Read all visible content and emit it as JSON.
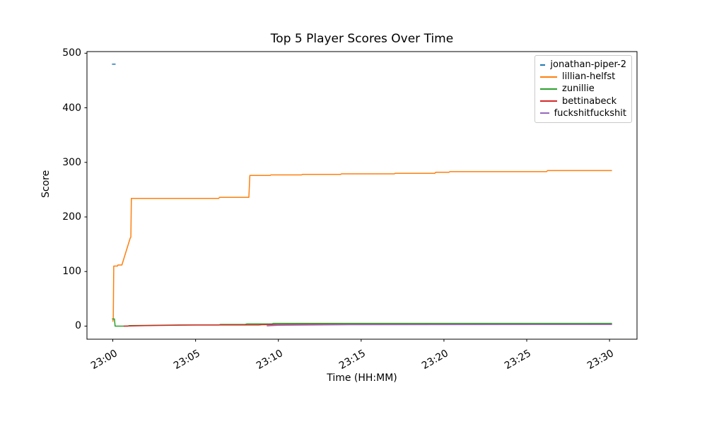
{
  "chart_data": {
    "type": "line",
    "title": "Top 5 Player Scores Over Time",
    "xlabel": "Time (HH:MM)",
    "ylabel": "Score",
    "x_axis_unit": "minutes after 23:00",
    "xlim": [
      -1.56,
      31.66
    ],
    "ylim": [
      -24,
      503
    ],
    "grid": false,
    "x_ticks": [
      {
        "value": 0,
        "label": "23:00"
      },
      {
        "value": 5,
        "label": "23:05"
      },
      {
        "value": 10,
        "label": "23:10"
      },
      {
        "value": 15,
        "label": "23:15"
      },
      {
        "value": 20,
        "label": "23:20"
      },
      {
        "value": 25,
        "label": "23:25"
      },
      {
        "value": 30,
        "label": "23:30"
      }
    ],
    "y_ticks": [
      {
        "value": 0,
        "label": "0"
      },
      {
        "value": 100,
        "label": "100"
      },
      {
        "value": 200,
        "label": "200"
      },
      {
        "value": 300,
        "label": "300"
      },
      {
        "value": 400,
        "label": "400"
      },
      {
        "value": 500,
        "label": "500"
      }
    ],
    "legend": {
      "position": "upper right"
    },
    "series": [
      {
        "name": "jonathan-piper-2",
        "color": "#1f77b4",
        "points": [
          [
            -0.05,
            480
          ],
          [
            0.17,
            480
          ]
        ]
      },
      {
        "name": "lillian-helfst",
        "color": "#ff7f0e",
        "points": [
          [
            0.0,
            8
          ],
          [
            0.03,
            13
          ],
          [
            0.06,
            110
          ],
          [
            0.28,
            110
          ],
          [
            0.31,
            112
          ],
          [
            0.55,
            112
          ],
          [
            1.05,
            161
          ],
          [
            1.09,
            163
          ],
          [
            1.12,
            234
          ],
          [
            6.4,
            234
          ],
          [
            6.45,
            236
          ],
          [
            8.22,
            236
          ],
          [
            8.28,
            276
          ],
          [
            9.5,
            276
          ],
          [
            9.55,
            277
          ],
          [
            11.4,
            277
          ],
          [
            11.46,
            278
          ],
          [
            13.75,
            278
          ],
          [
            13.81,
            279
          ],
          [
            17.0,
            279
          ],
          [
            17.06,
            280
          ],
          [
            19.45,
            280
          ],
          [
            19.51,
            282
          ],
          [
            20.3,
            282
          ],
          [
            20.36,
            283
          ],
          [
            26.2,
            283
          ],
          [
            26.26,
            285
          ],
          [
            30.15,
            285
          ]
        ]
      },
      {
        "name": "zunillie",
        "color": "#2ca02c",
        "points": [
          [
            -0.05,
            13
          ],
          [
            0.1,
            13
          ],
          [
            0.14,
            0
          ],
          [
            0.9,
            0
          ],
          [
            1.0,
            1
          ],
          [
            4.0,
            2
          ],
          [
            6.4,
            2
          ],
          [
            6.5,
            3
          ],
          [
            8.0,
            3
          ],
          [
            8.1,
            4
          ],
          [
            9.6,
            4
          ],
          [
            9.7,
            5
          ],
          [
            30.15,
            5
          ]
        ]
      },
      {
        "name": "bettinabeck",
        "color": "#d62728",
        "points": [
          [
            0.65,
            0
          ],
          [
            2.0,
            1
          ],
          [
            5.0,
            2
          ],
          [
            8.8,
            2
          ],
          [
            9.0,
            2.5
          ],
          [
            11.9,
            3
          ],
          [
            30.15,
            3
          ]
        ]
      },
      {
        "name": "fuckshitfuckshit",
        "color": "#9467bd",
        "points": [
          [
            9.3,
            0.5
          ],
          [
            10.0,
            1.5
          ],
          [
            14.3,
            2.5
          ],
          [
            30.15,
            3
          ]
        ]
      }
    ]
  }
}
